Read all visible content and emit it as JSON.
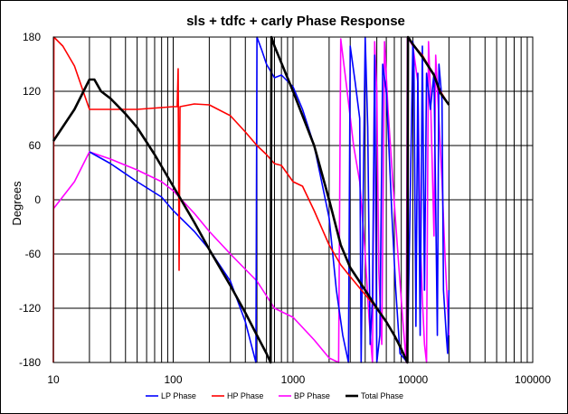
{
  "chart_data": {
    "type": "line",
    "title": "sls + tdfc + carly  Phase Response",
    "xlabel": "",
    "ylabel": "Degrees",
    "x_scale": "log",
    "xlim": [
      10,
      100000
    ],
    "ylim": [
      -180,
      180
    ],
    "x_ticks": [
      10,
      100,
      1000,
      10000,
      100000
    ],
    "x_tick_labels": [
      "10",
      "100",
      "1000",
      "10000",
      "100000"
    ],
    "y_ticks": [
      -180,
      -120,
      -60,
      0,
      60,
      120,
      180
    ],
    "y_tick_labels": [
      "-180",
      "-120",
      "-60",
      "0",
      "60",
      "120",
      "180"
    ],
    "grid": true,
    "legend_position": "bottom",
    "series": [
      {
        "name": "LP Phase",
        "color": "#0000ff",
        "points": [
          [
            20,
            53
          ],
          [
            30,
            40
          ],
          [
            50,
            20
          ],
          [
            80,
            3
          ],
          [
            100,
            -12
          ],
          [
            150,
            -35
          ],
          [
            200,
            -55
          ],
          [
            300,
            -90
          ],
          [
            400,
            -135
          ],
          [
            490,
            -180
          ],
          [
            500,
            180
          ],
          [
            550,
            165
          ],
          [
            600,
            150
          ],
          [
            700,
            135
          ],
          [
            800,
            138
          ],
          [
            1000,
            125
          ],
          [
            1200,
            100
          ],
          [
            1500,
            60
          ],
          [
            2000,
            -20
          ],
          [
            2300,
            -100
          ],
          [
            2600,
            -150
          ],
          [
            2900,
            -180
          ],
          [
            3000,
            170
          ],
          [
            3300,
            130
          ],
          [
            3600,
            90
          ],
          [
            3700,
            -180
          ],
          [
            4000,
            180
          ],
          [
            4200,
            80
          ],
          [
            4400,
            -160
          ],
          [
            4600,
            -110
          ],
          [
            4800,
            160
          ],
          [
            5000,
            -180
          ],
          [
            5300,
            -150
          ],
          [
            5600,
            150
          ],
          [
            6000,
            120
          ],
          [
            6300,
            60
          ],
          [
            6700,
            -20
          ],
          [
            7200,
            -100
          ],
          [
            7800,
            -170
          ],
          [
            9000,
            -180
          ],
          [
            10000,
            175
          ],
          [
            10200,
            150
          ],
          [
            10600,
            -140
          ],
          [
            11000,
            140
          ],
          [
            11500,
            -150
          ],
          [
            12000,
            170
          ],
          [
            12500,
            -100
          ],
          [
            13000,
            140
          ],
          [
            14000,
            100
          ],
          [
            15000,
            140
          ],
          [
            16000,
            -150
          ],
          [
            16500,
            150
          ],
          [
            17500,
            110
          ],
          [
            18000,
            -100
          ],
          [
            19000,
            -150
          ],
          [
            19500,
            -170
          ],
          [
            20000,
            -100
          ]
        ]
      },
      {
        "name": "HP Phase",
        "color": "#ff0000",
        "points": [
          [
            10,
            -180
          ],
          [
            10.1,
            180
          ],
          [
            12,
            170
          ],
          [
            15,
            148
          ],
          [
            20,
            100
          ],
          [
            30,
            100
          ],
          [
            50,
            100
          ],
          [
            80,
            102
          ],
          [
            100,
            103
          ],
          [
            108,
            103
          ],
          [
            110,
            145
          ],
          [
            112,
            -78
          ],
          [
            114,
            103
          ],
          [
            150,
            106
          ],
          [
            200,
            105
          ],
          [
            300,
            93
          ],
          [
            400,
            75
          ],
          [
            500,
            60
          ],
          [
            600,
            50
          ],
          [
            700,
            40
          ],
          [
            800,
            38
          ],
          [
            1000,
            20
          ],
          [
            1200,
            15
          ],
          [
            1500,
            -12
          ],
          [
            2000,
            -50
          ],
          [
            2500,
            -72
          ],
          [
            3000,
            -85
          ],
          [
            4000,
            -105
          ],
          [
            5000,
            -120
          ],
          [
            6000,
            -135
          ],
          [
            7000,
            -150
          ],
          [
            8000,
            -165
          ],
          [
            9000,
            -180
          ],
          [
            9100,
            180
          ],
          [
            10000,
            172
          ],
          [
            12000,
            160
          ],
          [
            15000,
            138
          ],
          [
            17000,
            120
          ],
          [
            20000,
            105
          ]
        ]
      },
      {
        "name": "BP Phase",
        "color": "#ff00ff",
        "points": [
          [
            10,
            -10
          ],
          [
            15,
            20
          ],
          [
            20,
            53
          ],
          [
            30,
            45
          ],
          [
            50,
            33
          ],
          [
            80,
            20
          ],
          [
            100,
            10
          ],
          [
            150,
            -15
          ],
          [
            200,
            -35
          ],
          [
            300,
            -60
          ],
          [
            500,
            -90
          ],
          [
            700,
            -120
          ],
          [
            1000,
            -130
          ],
          [
            1500,
            -155
          ],
          [
            2000,
            -175
          ],
          [
            2400,
            -180
          ],
          [
            2500,
            178
          ],
          [
            2800,
            125
          ],
          [
            3200,
            60
          ],
          [
            3600,
            20
          ],
          [
            4000,
            -60
          ],
          [
            4300,
            -130
          ],
          [
            4600,
            -180
          ],
          [
            4800,
            175
          ],
          [
            5000,
            120
          ],
          [
            5200,
            -80
          ],
          [
            5500,
            -160
          ],
          [
            5800,
            175
          ],
          [
            6200,
            100
          ],
          [
            6800,
            20
          ],
          [
            7500,
            -60
          ],
          [
            8200,
            -130
          ],
          [
            8800,
            -180
          ],
          [
            9000,
            180
          ],
          [
            10000,
            170
          ],
          [
            11000,
            130
          ],
          [
            11500,
            -40
          ],
          [
            12000,
            -110
          ],
          [
            12500,
            -160
          ],
          [
            13000,
            -180
          ],
          [
            13500,
            175
          ],
          [
            14000,
            120
          ],
          [
            15000,
            -40
          ],
          [
            15500,
            160
          ],
          [
            16500,
            90
          ],
          [
            17500,
            20
          ],
          [
            18500,
            -60
          ],
          [
            19500,
            -120
          ],
          [
            20000,
            -150
          ]
        ]
      },
      {
        "name": "Total Phase",
        "color": "#000000",
        "points": [
          [
            10,
            65
          ],
          [
            15,
            100
          ],
          [
            20,
            133
          ],
          [
            22,
            133
          ],
          [
            25,
            120
          ],
          [
            30,
            112
          ],
          [
            40,
            95
          ],
          [
            50,
            80
          ],
          [
            70,
            50
          ],
          [
            100,
            15
          ],
          [
            150,
            -25
          ],
          [
            200,
            -55
          ],
          [
            300,
            -95
          ],
          [
            400,
            -125
          ],
          [
            500,
            -150
          ],
          [
            600,
            -170
          ],
          [
            650,
            -180
          ],
          [
            660,
            180
          ],
          [
            700,
            170
          ],
          [
            1000,
            120
          ],
          [
            1500,
            60
          ],
          [
            2000,
            0
          ],
          [
            2500,
            -50
          ],
          [
            3000,
            -75
          ],
          [
            4000,
            -100
          ],
          [
            5000,
            -120
          ],
          [
            6000,
            -135
          ],
          [
            7000,
            -150
          ],
          [
            8000,
            -165
          ],
          [
            9000,
            -180
          ],
          [
            9100,
            180
          ],
          [
            10000,
            172
          ],
          [
            12000,
            158
          ],
          [
            15000,
            138
          ],
          [
            17000,
            118
          ],
          [
            20000,
            105
          ]
        ]
      }
    ]
  }
}
